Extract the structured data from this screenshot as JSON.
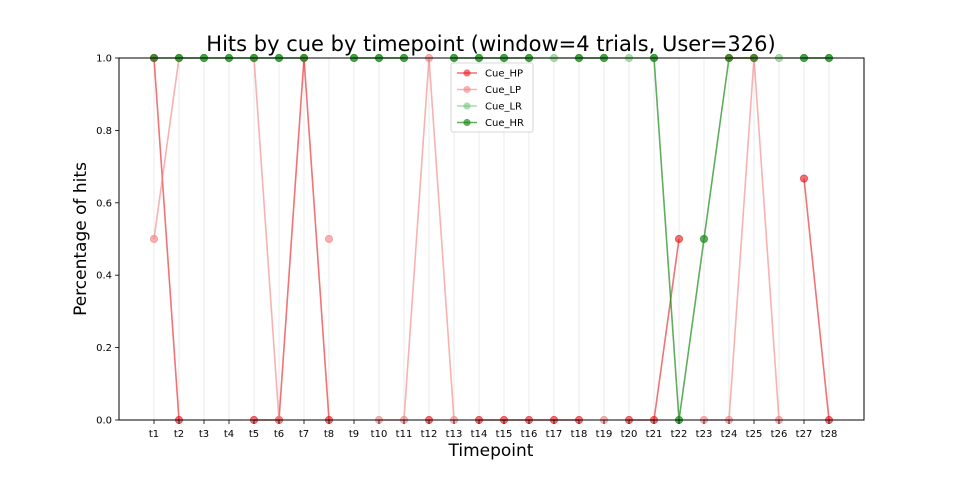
{
  "chart_data": {
    "type": "line",
    "title": "Hits by cue by timepoint (window=4 trials, User=326)",
    "xlabel": "Timepoint",
    "ylabel": "Percentage of hits",
    "ylim": [
      0,
      1
    ],
    "yticks": [
      "0.0",
      "0.2",
      "0.4",
      "0.6",
      "0.8",
      "1.0"
    ],
    "categories": [
      "t1",
      "t2",
      "t3",
      "t4",
      "t5",
      "t6",
      "t7",
      "t8",
      "t9",
      "t10",
      "t11",
      "t12",
      "t13",
      "t14",
      "t15",
      "t16",
      "t17",
      "t18",
      "t19",
      "t20",
      "t21",
      "t22",
      "t23",
      "t24",
      "t25",
      "t26",
      "t27",
      "t28"
    ],
    "grid": "vertical",
    "legend_position": "top-center",
    "series": [
      {
        "name": "Cue_HP",
        "color": "#e8161b",
        "alpha": 0.6,
        "values": [
          1,
          0,
          null,
          null,
          0,
          0,
          1,
          0,
          null,
          null,
          null,
          0,
          null,
          0,
          0,
          0,
          0,
          0,
          null,
          0,
          0,
          0.5,
          null,
          1,
          1,
          null,
          0.667,
          0
        ]
      },
      {
        "name": "Cue_LP",
        "color": "#f47f7f",
        "alpha": 0.6,
        "values": [
          0.5,
          1,
          null,
          null,
          1,
          0,
          null,
          0.5,
          null,
          0,
          0,
          1,
          0,
          null,
          null,
          null,
          null,
          null,
          0,
          null,
          null,
          null,
          0,
          0,
          1,
          0,
          null,
          null
        ]
      },
      {
        "name": "Cue_LR",
        "color": "#74c476",
        "alpha": 0.6,
        "values": [
          null,
          1,
          1,
          1,
          1,
          1,
          1,
          null,
          1,
          1,
          1,
          null,
          1,
          1,
          1,
          1,
          1,
          1,
          1,
          1,
          1,
          null,
          null,
          null,
          null,
          1,
          1,
          1
        ]
      },
      {
        "name": "Cue_HR",
        "color": "#1a8b1a",
        "alpha": 0.7,
        "values": [
          1,
          1,
          1,
          1,
          1,
          1,
          1,
          null,
          1,
          1,
          1,
          null,
          1,
          1,
          1,
          1,
          null,
          1,
          1,
          null,
          1,
          0,
          0.5,
          1,
          1,
          null,
          1,
          1
        ]
      }
    ]
  }
}
